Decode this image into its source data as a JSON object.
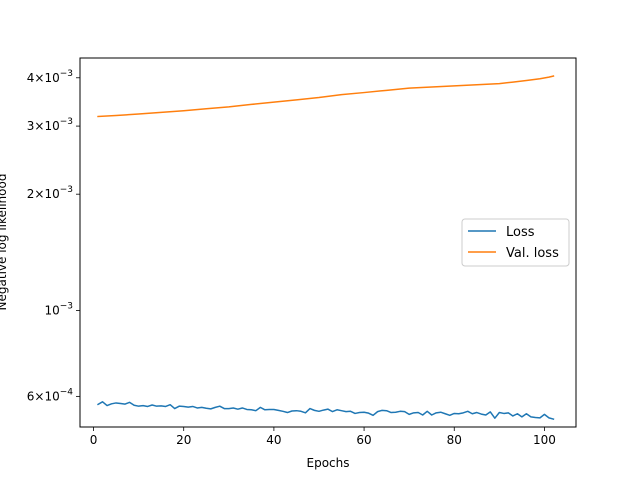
{
  "chart_data": {
    "type": "line",
    "title": "",
    "xlabel": "Epochs",
    "ylabel": "Negative log likelihood",
    "xlim": [
      -3,
      107
    ],
    "ylim": [
      0.0005,
      0.0045
    ],
    "yscale": "log",
    "grid": false,
    "legend_position": "center-right",
    "x_ticks": [
      0,
      20,
      40,
      60,
      80,
      100
    ],
    "x_tick_labels": [
      "0",
      "20",
      "40",
      "60",
      "80",
      "100"
    ],
    "y_ticks": [
      0.0006,
      0.001,
      0.002,
      0.003,
      0.004
    ],
    "y_tick_labels": [
      {
        "base": "6",
        "exp": "−4"
      },
      {
        "base": "",
        "exp": "−3"
      },
      {
        "base": "2",
        "exp": "−3"
      },
      {
        "base": "3",
        "exp": "−3"
      },
      {
        "base": "4",
        "exp": "−3"
      }
    ],
    "series": [
      {
        "name": "Loss",
        "color": "#1f77b4",
        "x": [
          1,
          2,
          3,
          4,
          5,
          6,
          7,
          8,
          9,
          10,
          11,
          12,
          13,
          14,
          15,
          16,
          17,
          18,
          19,
          20,
          21,
          22,
          23,
          24,
          25,
          26,
          27,
          28,
          29,
          30,
          31,
          32,
          33,
          34,
          35,
          36,
          37,
          38,
          39,
          40,
          41,
          42,
          43,
          44,
          45,
          46,
          47,
          48,
          49,
          50,
          51,
          52,
          53,
          54,
          55,
          56,
          57,
          58,
          59,
          60,
          61,
          62,
          63,
          64,
          65,
          66,
          67,
          68,
          69,
          70,
          71,
          72,
          73,
          74,
          75,
          76,
          77,
          78,
          79,
          80,
          81,
          82,
          83,
          84,
          85,
          86,
          87,
          88,
          89,
          90,
          91,
          92,
          93,
          94,
          95,
          96,
          97,
          98,
          99,
          100,
          101,
          102
        ],
        "y": [
          0.000572,
          0.000581,
          0.000568,
          0.000574,
          0.000577,
          0.000575,
          0.000573,
          0.000579,
          0.000569,
          0.000566,
          0.000568,
          0.000565,
          0.00057,
          0.000566,
          0.000567,
          0.000565,
          0.000571,
          0.000558,
          0.000566,
          0.000565,
          0.000563,
          0.000565,
          0.00056,
          0.000562,
          0.000559,
          0.000557,
          0.000562,
          0.000566,
          0.000558,
          0.000558,
          0.00056,
          0.000556,
          0.00056,
          0.000555,
          0.000554,
          0.000551,
          0.000562,
          0.000554,
          0.000555,
          0.000555,
          0.000552,
          0.000549,
          0.000545,
          0.00055,
          0.000551,
          0.000549,
          0.000544,
          0.000558,
          0.000552,
          0.000549,
          0.000553,
          0.000556,
          0.000548,
          0.000554,
          0.000551,
          0.000548,
          0.000549,
          0.000542,
          0.000545,
          0.000546,
          0.000543,
          0.000536,
          0.000548,
          0.000552,
          0.000551,
          0.000545,
          0.000546,
          0.000549,
          0.000548,
          0.000539,
          0.000544,
          0.000545,
          0.000537,
          0.000549,
          0.000537,
          0.000544,
          0.000546,
          0.000541,
          0.000536,
          0.000542,
          0.000541,
          0.000544,
          0.000549,
          0.000541,
          0.000545,
          0.00054,
          0.000537,
          0.000547,
          0.000527,
          0.000545,
          0.000542,
          0.000544,
          0.000534,
          0.000541,
          0.000531,
          0.000541,
          0.000531,
          0.000529,
          0.000528,
          0.000539,
          0.000528,
          0.000524
        ]
      },
      {
        "name": "Val. loss",
        "color": "#ff7f0e",
        "x": [
          1,
          5,
          10,
          15,
          20,
          25,
          30,
          35,
          40,
          45,
          50,
          55,
          60,
          65,
          70,
          75,
          80,
          85,
          90,
          93,
          96,
          99,
          101,
          102
        ],
        "y": [
          0.003176,
          0.003195,
          0.003223,
          0.003255,
          0.003287,
          0.003326,
          0.003364,
          0.003413,
          0.003459,
          0.003507,
          0.003557,
          0.003619,
          0.003663,
          0.003712,
          0.003761,
          0.003786,
          0.003811,
          0.003836,
          0.003862,
          0.003899,
          0.003936,
          0.003976,
          0.004016,
          0.004042
        ]
      }
    ]
  }
}
